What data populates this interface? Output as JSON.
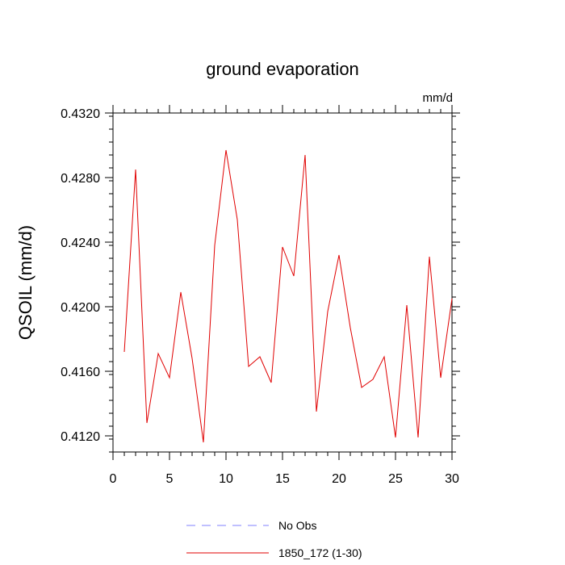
{
  "chart_data": {
    "type": "line",
    "title": "ground evaporation",
    "units": "mm/d",
    "xlabel": "",
    "ylabel": "QSOIL  (mm/d)",
    "xlim": [
      0,
      30
    ],
    "ylim": [
      0.411,
      0.432
    ],
    "x_ticks": [
      0,
      5,
      10,
      15,
      20,
      25,
      30
    ],
    "x_tick_labels": [
      "0",
      "5",
      "10",
      "15",
      "20",
      "25",
      "30"
    ],
    "x_minor_step": 1,
    "y_ticks": [
      0.412,
      0.416,
      0.42,
      0.424,
      0.428,
      0.432
    ],
    "y_tick_labels": [
      "0.4120",
      "0.4160",
      "0.4200",
      "0.4240",
      "0.4280",
      "0.4320"
    ],
    "y_minor_step": 0.0008,
    "grid": false,
    "series": [
      {
        "name": "1850_172 (1-30)",
        "color": "#e00000",
        "style": "solid",
        "x": [
          1,
          2,
          3,
          4,
          5,
          6,
          7,
          8,
          9,
          10,
          11,
          12,
          13,
          14,
          15,
          16,
          17,
          18,
          19,
          20,
          21,
          22,
          23,
          24,
          25,
          26,
          27,
          28,
          29,
          30
        ],
        "values": [
          0.4172,
          0.4285,
          0.4128,
          0.4171,
          0.4156,
          0.4209,
          0.4168,
          0.4116,
          0.4238,
          0.4297,
          0.4254,
          0.4163,
          0.4169,
          0.4153,
          0.4237,
          0.4219,
          0.4294,
          0.4135,
          0.4197,
          0.4232,
          0.4187,
          0.415,
          0.4155,
          0.4169,
          0.4119,
          0.4201,
          0.4119,
          0.4231,
          0.4156,
          0.4205
        ]
      }
    ],
    "legend": [
      {
        "label": "No Obs",
        "color": "#8080ff",
        "style": "dashed"
      },
      {
        "label": "1850_172 (1-30)",
        "color": "#e00000",
        "style": "solid"
      }
    ],
    "legend_position": "bottom"
  }
}
